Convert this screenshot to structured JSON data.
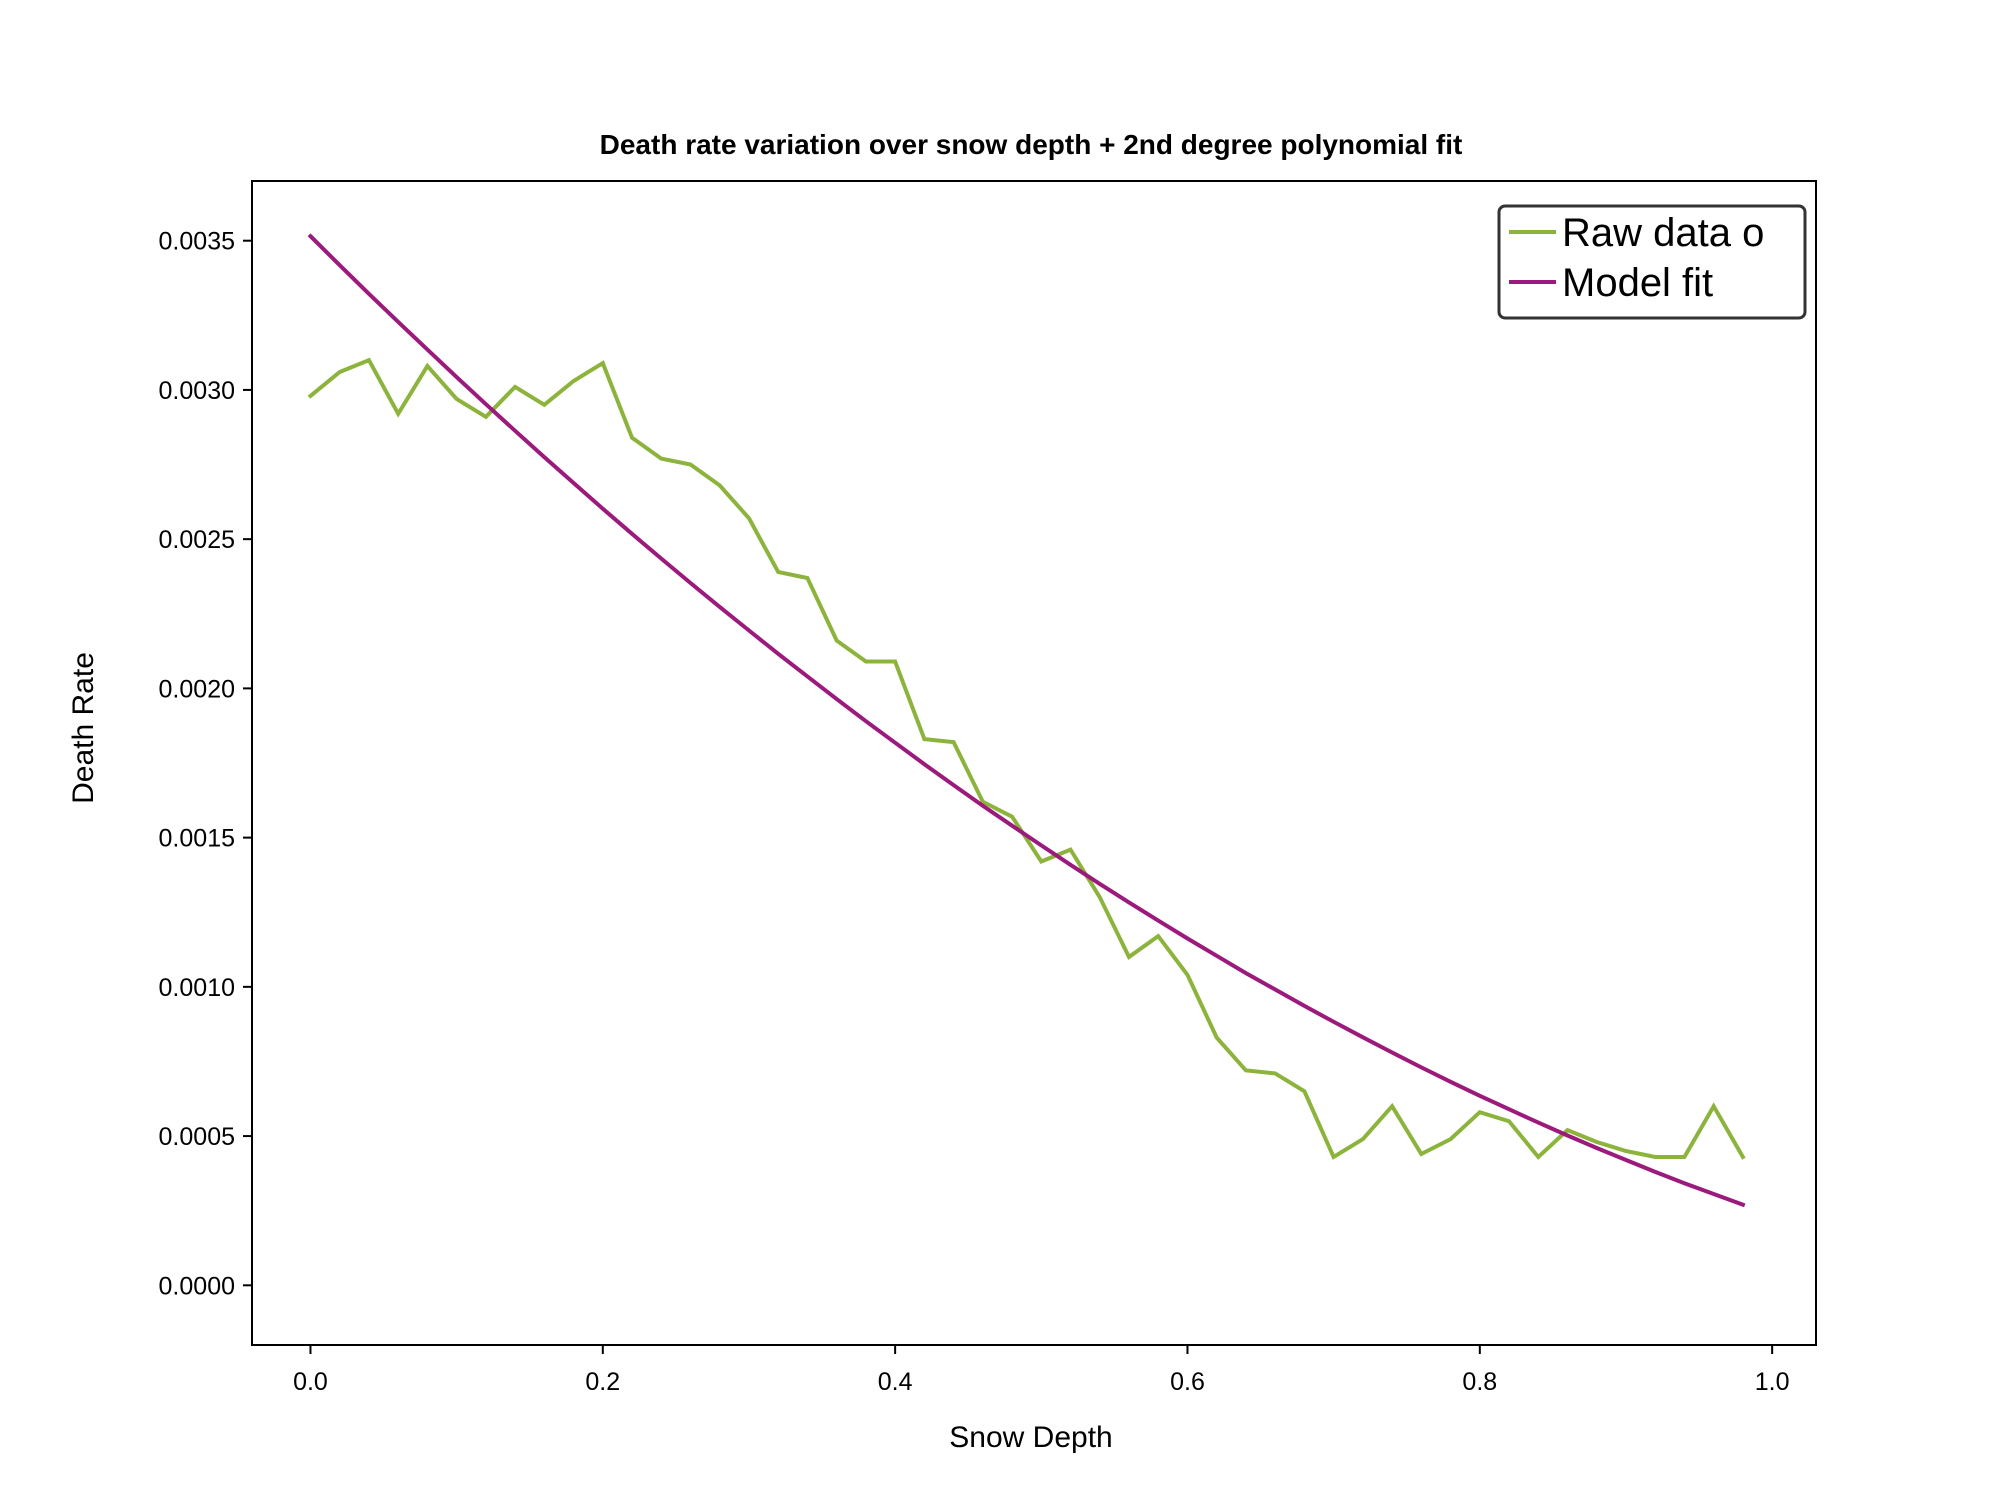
{
  "chart_data": {
    "type": "line",
    "title": "Death rate variation over snow depth + 2nd degree polynomial fit",
    "xlabel": "Snow Depth",
    "ylabel": "Death Rate",
    "xlim": [
      -0.04,
      1.03
    ],
    "ylim": [
      -0.0002,
      0.0037
    ],
    "xticks": [
      0.0,
      0.2,
      0.4,
      0.6,
      0.8,
      1.0
    ],
    "xtick_labels": [
      "0.0",
      "0.2",
      "0.4",
      "0.6",
      "0.8",
      "1.0"
    ],
    "yticks": [
      0.0,
      0.0005,
      0.001,
      0.0015,
      0.002,
      0.0025,
      0.003,
      0.0035
    ],
    "ytick_labels": [
      "0.0000",
      "0.0005",
      "0.0010",
      "0.0015",
      "0.0020",
      "0.0025",
      "0.0030",
      "0.0035"
    ],
    "grid": false,
    "legend_position": "top-right",
    "x": [
      0.0,
      0.02,
      0.04,
      0.06,
      0.08,
      0.1,
      0.12,
      0.14,
      0.16,
      0.18,
      0.2,
      0.22,
      0.24,
      0.26,
      0.28,
      0.3,
      0.32,
      0.34,
      0.36,
      0.38,
      0.4,
      0.42,
      0.44,
      0.46,
      0.48,
      0.5,
      0.52,
      0.54,
      0.56,
      0.58,
      0.6,
      0.62,
      0.64,
      0.66,
      0.68,
      0.7,
      0.72,
      0.74,
      0.76,
      0.78,
      0.8,
      0.82,
      0.84,
      0.86,
      0.88,
      0.9,
      0.92,
      0.94,
      0.96,
      0.98
    ],
    "series": [
      {
        "name": "Raw data o",
        "color": "#8cb43c",
        "values": [
          0.00298,
          0.00306,
          0.0031,
          0.00292,
          0.00308,
          0.00297,
          0.00291,
          0.00301,
          0.00295,
          0.00303,
          0.00309,
          0.00284,
          0.00277,
          0.00275,
          0.00268,
          0.00257,
          0.00239,
          0.00237,
          0.00216,
          0.00209,
          0.00209,
          0.00183,
          0.00182,
          0.00162,
          0.00157,
          0.00142,
          0.00146,
          0.0013,
          0.0011,
          0.00117,
          0.00104,
          0.00083,
          0.00072,
          0.00071,
          0.00065,
          0.00043,
          0.00049,
          0.0006,
          0.00044,
          0.00049,
          0.00058,
          0.00055,
          0.00043,
          0.00052,
          0.00048,
          0.00045,
          0.00043,
          0.00043,
          0.0006,
          0.00043
        ]
      },
      {
        "name": "Model fit",
        "color": "#9b1a7c",
        "values": [
          0.003515,
          0.003418,
          0.003322,
          0.003228,
          0.003135,
          0.003043,
          0.002952,
          0.002863,
          0.002775,
          0.002688,
          0.002602,
          0.002518,
          0.002435,
          0.002353,
          0.002273,
          0.002194,
          0.002116,
          0.00204,
          0.001964,
          0.00189,
          0.001818,
          0.001746,
          0.001676,
          0.001607,
          0.00154,
          0.001474,
          0.001409,
          0.001345,
          0.001283,
          0.001222,
          0.001162,
          0.001104,
          0.001046,
          0.000991,
          0.000936,
          0.000883,
          0.000831,
          0.00078,
          0.00073,
          0.000682,
          0.000635,
          0.00059,
          0.000545,
          0.000502,
          0.00046,
          0.00042,
          0.00038,
          0.000342,
          0.000306,
          0.00027
        ]
      }
    ]
  }
}
